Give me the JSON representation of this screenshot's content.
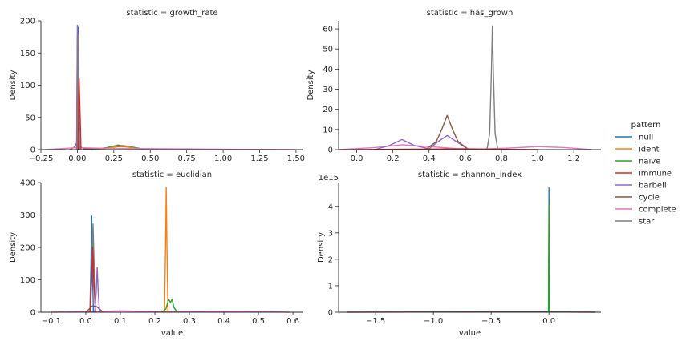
{
  "legend": {
    "title": "pattern",
    "entries": [
      {
        "name": "null",
        "color": "#1f77b4"
      },
      {
        "name": "ident",
        "color": "#ff7f0e"
      },
      {
        "name": "naive",
        "color": "#2ca02c"
      },
      {
        "name": "immune",
        "color": "#d62728"
      },
      {
        "name": "barbell",
        "color": "#9467bd"
      },
      {
        "name": "cycle",
        "color": "#8c564b"
      },
      {
        "name": "complete",
        "color": "#e377c2"
      },
      {
        "name": "star",
        "color": "#7f7f7f"
      }
    ]
  },
  "chart_data": [
    {
      "type": "line",
      "title": "statistic = growth_rate",
      "xlabel": "",
      "ylabel": "Density",
      "xlim": [
        -0.25,
        1.55
      ],
      "ylim": [
        0,
        200
      ],
      "xticks": [
        -0.25,
        0.0,
        0.25,
        0.5,
        0.75,
        1.0,
        1.25,
        1.5
      ],
      "xtick_labels": [
        "−0.25",
        "0.00",
        "0.25",
        "0.50",
        "0.75",
        "1.00",
        "1.25",
        "1.50"
      ],
      "yticks": [
        0,
        50,
        100,
        150,
        200
      ],
      "ytick_labels": [
        "0",
        "50",
        "100",
        "150",
        "200"
      ],
      "offset_label": "",
      "series": [
        {
          "name": "cycle",
          "color": "#8c564b",
          "x": [
            -0.05,
            -0.02,
            0.0,
            0.02,
            0.05,
            0.15,
            0.25,
            0.3,
            0.35,
            0.45
          ],
          "y": [
            0,
            4,
            12,
            4,
            1,
            1,
            4,
            5,
            4,
            0
          ]
        },
        {
          "name": "naive",
          "color": "#2ca02c",
          "x": [
            0.1,
            0.2,
            0.28,
            0.35,
            0.45,
            0.55
          ],
          "y": [
            0,
            3,
            7,
            5,
            1,
            0
          ]
        },
        {
          "name": "ident",
          "color": "#ff7f0e",
          "x": [
            0.15,
            0.25,
            0.3,
            0.35,
            0.45
          ],
          "y": [
            0,
            4,
            6,
            4,
            0
          ]
        },
        {
          "name": "complete",
          "color": "#e377c2",
          "x": [
            -0.22,
            0.0,
            0.2,
            0.5,
            0.8,
            1.1,
            1.5
          ],
          "y": [
            0,
            3,
            2,
            1.5,
            1,
            0.5,
            0
          ]
        },
        {
          "name": "null",
          "color": "#1f77b4",
          "x": [
            -0.005,
            0.0,
            0.005,
            0.01,
            0.015
          ],
          "y": [
            0,
            170,
            190,
            60,
            0
          ]
        },
        {
          "name": "barbell",
          "color": "#9467bd",
          "x": [
            -0.005,
            0.0,
            0.005,
            0.012
          ],
          "y": [
            0,
            193,
            120,
            0
          ]
        },
        {
          "name": "star",
          "color": "#7f7f7f",
          "x": [
            0.0,
            0.005,
            0.008,
            0.011,
            0.016
          ],
          "y": [
            0,
            175,
            180,
            100,
            0
          ]
        },
        {
          "name": "immune",
          "color": "#d62728",
          "x": [
            0.005,
            0.012,
            0.018,
            0.025
          ],
          "y": [
            0,
            110,
            60,
            0
          ]
        }
      ]
    },
    {
      "type": "line",
      "title": "statistic = has_grown",
      "xlabel": "",
      "ylabel": "Density",
      "xlim": [
        -0.1,
        1.35
      ],
      "ylim": [
        0,
        64
      ],
      "xticks": [
        0.0,
        0.2,
        0.4,
        0.6,
        0.8,
        1.0,
        1.2
      ],
      "xtick_labels": [
        "0.0",
        "0.2",
        "0.4",
        "0.6",
        "0.8",
        "1.0",
        "1.2"
      ],
      "yticks": [
        0,
        10,
        20,
        30,
        40,
        50,
        60
      ],
      "ytick_labels": [
        "0",
        "10",
        "20",
        "30",
        "40",
        "50",
        "60"
      ],
      "offset_label": "",
      "series": [
        {
          "name": "complete",
          "color": "#e377c2",
          "x": [
            -0.1,
            0.1,
            0.25,
            0.4,
            0.55,
            0.7,
            0.85,
            1.0,
            1.15,
            1.3
          ],
          "y": [
            0,
            1,
            2.4,
            1.5,
            0.5,
            0.3,
            0.8,
            1.5,
            1.0,
            0
          ]
        },
        {
          "name": "barbell",
          "color": "#9467bd",
          "x": [
            0.1,
            0.18,
            0.25,
            0.32,
            0.4,
            0.45,
            0.5,
            0.55,
            0.62
          ],
          "y": [
            0,
            2,
            5,
            2,
            0.4,
            4,
            7,
            4,
            0
          ]
        },
        {
          "name": "cycle",
          "color": "#8c564b",
          "x": [
            0.38,
            0.44,
            0.47,
            0.5,
            0.53,
            0.56,
            0.62
          ],
          "y": [
            0,
            4,
            10,
            17,
            10,
            4,
            0
          ]
        },
        {
          "name": "star",
          "color": "#7f7f7f",
          "x": [
            0.72,
            0.735,
            0.745,
            0.75,
            0.755,
            0.765,
            0.78
          ],
          "y": [
            0,
            8,
            40,
            61.5,
            40,
            8,
            0
          ]
        },
        {
          "name": "immune",
          "color": "#d62728",
          "x": [
            0.0,
            0.25,
            0.5,
            0.75,
            1.0
          ],
          "y": [
            0,
            0.2,
            0.3,
            0.2,
            0
          ]
        }
      ]
    },
    {
      "type": "line",
      "title": "statistic = euclidian",
      "xlabel": "value",
      "ylabel": "Density",
      "xlim": [
        -0.13,
        0.63
      ],
      "ylim": [
        0,
        400
      ],
      "xticks": [
        -0.1,
        0.0,
        0.1,
        0.2,
        0.3,
        0.4,
        0.5,
        0.6
      ],
      "xtick_labels": [
        "−0.1",
        "0.0",
        "0.1",
        "0.2",
        "0.3",
        "0.4",
        "0.5",
        "0.6"
      ],
      "yticks": [
        0,
        100,
        200,
        300,
        400
      ],
      "ytick_labels": [
        "0",
        "100",
        "200",
        "300",
        "400"
      ],
      "offset_label": "",
      "series": [
        {
          "name": "complete",
          "color": "#e377c2",
          "x": [
            -0.1,
            0.0,
            0.1,
            0.2,
            0.3,
            0.4,
            0.5,
            0.59
          ],
          "y": [
            0,
            2,
            4,
            2,
            2,
            3,
            2,
            0
          ]
        },
        {
          "name": "cycle",
          "color": "#8c564b",
          "x": [
            0.0,
            0.01,
            0.02,
            0.03,
            0.04,
            0.05
          ],
          "y": [
            0,
            10,
            20,
            18,
            10,
            0
          ]
        },
        {
          "name": "null",
          "color": "#1f77b4",
          "x": [
            0.012,
            0.015,
            0.017,
            0.019,
            0.022
          ],
          "y": [
            0,
            150,
            297,
            150,
            0
          ]
        },
        {
          "name": "star",
          "color": "#7f7f7f",
          "x": [
            0.014,
            0.018,
            0.021,
            0.024,
            0.028
          ],
          "y": [
            0,
            150,
            272,
            150,
            0
          ]
        },
        {
          "name": "immune",
          "color": "#d62728",
          "x": [
            0.012,
            0.017,
            0.02,
            0.023,
            0.028
          ],
          "y": [
            0,
            100,
            200,
            100,
            0
          ]
        },
        {
          "name": "barbell",
          "color": "#9467bd",
          "x": [
            0.026,
            0.03,
            0.033,
            0.036,
            0.04
          ],
          "y": [
            0,
            60,
            138,
            60,
            0
          ]
        },
        {
          "name": "ident",
          "color": "#ff7f0e",
          "x": [
            0.228,
            0.231,
            0.233,
            0.235,
            0.238
          ],
          "y": [
            0,
            200,
            385,
            200,
            0
          ]
        },
        {
          "name": "naive",
          "color": "#2ca02c",
          "x": [
            0.22,
            0.232,
            0.24,
            0.245,
            0.25,
            0.255,
            0.265
          ],
          "y": [
            0,
            10,
            40,
            30,
            40,
            15,
            0
          ]
        }
      ]
    },
    {
      "type": "line",
      "title": "statistic = shannon_index",
      "xlabel": "value",
      "ylabel": "Density",
      "xlim": [
        -1.82,
        0.45
      ],
      "ylim": [
        0,
        4.9
      ],
      "xticks": [
        -1.5,
        -1.0,
        -0.5,
        0.0
      ],
      "xtick_labels": [
        "−1.5",
        "−1.0",
        "−0.5",
        "0.0"
      ],
      "yticks": [
        0,
        1,
        2,
        3,
        4
      ],
      "ytick_labels": [
        "0",
        "1",
        "2",
        "3",
        "4"
      ],
      "offset_label": "1e15",
      "series": [
        {
          "name": "complete",
          "color": "#e377c2",
          "x": [
            -1.75,
            0.0,
            0.4
          ],
          "y": [
            0.005,
            0.005,
            0.005
          ]
        },
        {
          "name": "cycle",
          "color": "#8c564b",
          "x": [
            -1.75,
            -0.5,
            0.0,
            0.4
          ],
          "y": [
            0,
            0.01,
            0.01,
            0
          ]
        },
        {
          "name": "null",
          "color": "#1f77b4",
          "x": [
            -0.004,
            -0.001,
            0.0,
            0.001,
            0.004
          ],
          "y": [
            0,
            3.0,
            4.7,
            3.0,
            0
          ]
        },
        {
          "name": "naive",
          "color": "#2ca02c",
          "x": [
            -0.004,
            -0.001,
            0.0,
            0.001,
            0.004
          ],
          "y": [
            0,
            2.5,
            4.1,
            2.5,
            0
          ]
        }
      ]
    }
  ]
}
